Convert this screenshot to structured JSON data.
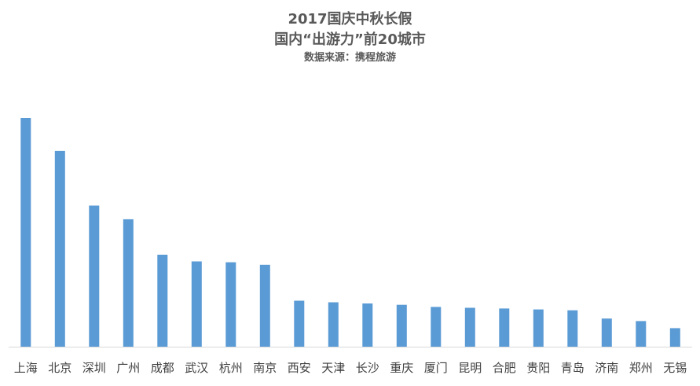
{
  "chart_data": {
    "type": "bar",
    "title": "2017国庆中秋长假",
    "subtitle": "国内“出游力”前20城市",
    "source": "数据来源：携程旅游",
    "categories": [
      "上海",
      "北京",
      "深圳",
      "广州",
      "成都",
      "武汉",
      "杭州",
      "南京",
      "西安",
      "天津",
      "长沙",
      "重庆",
      "厦门",
      "昆明",
      "合肥",
      "贵阳",
      "青岛",
      "济南",
      "郑州",
      "无锡"
    ],
    "values": [
      100,
      85.6,
      61.7,
      55.7,
      40.2,
      37.3,
      36.9,
      35.8,
      20.1,
      19.4,
      18.9,
      18.3,
      17.4,
      17,
      16.7,
      16.3,
      15.9,
      12.3,
      11.2,
      8.1
    ],
    "ylim": [
      0,
      100
    ],
    "grid": false,
    "legend": "none",
    "bar_color": "#5b9bd5",
    "axis_color": "#d9d9d9"
  }
}
